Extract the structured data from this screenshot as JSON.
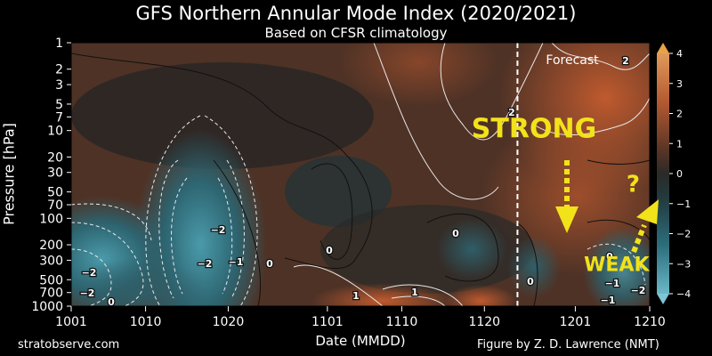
{
  "title": "GFS Northern Annular Mode Index (2020/2021)",
  "subtitle": "Based on CFSR climatology",
  "footer_left": "stratobserve.com",
  "footer_right": "Figure by Z. D. Lawrence (NMT)",
  "colors": {
    "strong_annotation": "#f2e21a",
    "forecast_line": "#ffffff",
    "negative": "#2f7f8f",
    "positive": "#c25a2c"
  },
  "chart_data": {
    "type": "heatmap",
    "xlabel": "Date (MMDD)",
    "ylabel": "Pressure [hPa]",
    "xlim": [
      "1001",
      "1210"
    ],
    "ylim": [
      1000,
      1
    ],
    "y_scale": "log",
    "x_ticks": [
      "1001",
      "1010",
      "1020",
      "1101",
      "1110",
      "1120",
      "1201",
      "1210"
    ],
    "y_ticks": [
      "1",
      "2",
      "3",
      "5",
      "7",
      "10",
      "20",
      "30",
      "50",
      "70",
      "100",
      "200",
      "300",
      "500",
      "700",
      "1000"
    ],
    "colorbar": {
      "range": [
        -4,
        4
      ],
      "ticks": [
        "4",
        "3",
        "2",
        "1",
        "0",
        "−1",
        "−2",
        "−3",
        "−4"
      ],
      "extend": "both"
    },
    "forecast_start": "1124",
    "forecast_label": "Forecast",
    "contour_labels": [
      "2",
      "−2",
      "−2",
      "−1",
      "0",
      "0",
      "0",
      "0",
      "−2",
      "−2",
      "2",
      "1",
      "1",
      "−1",
      "−2",
      "0",
      "−1",
      "0"
    ],
    "annotations": [
      {
        "text": "STRONG",
        "x": "1126",
        "pressure": 12
      },
      {
        "text": "WEAK",
        "x": "1206",
        "pressure": 400
      },
      {
        "text": "?",
        "x": "1208",
        "pressure": 50
      }
    ]
  }
}
